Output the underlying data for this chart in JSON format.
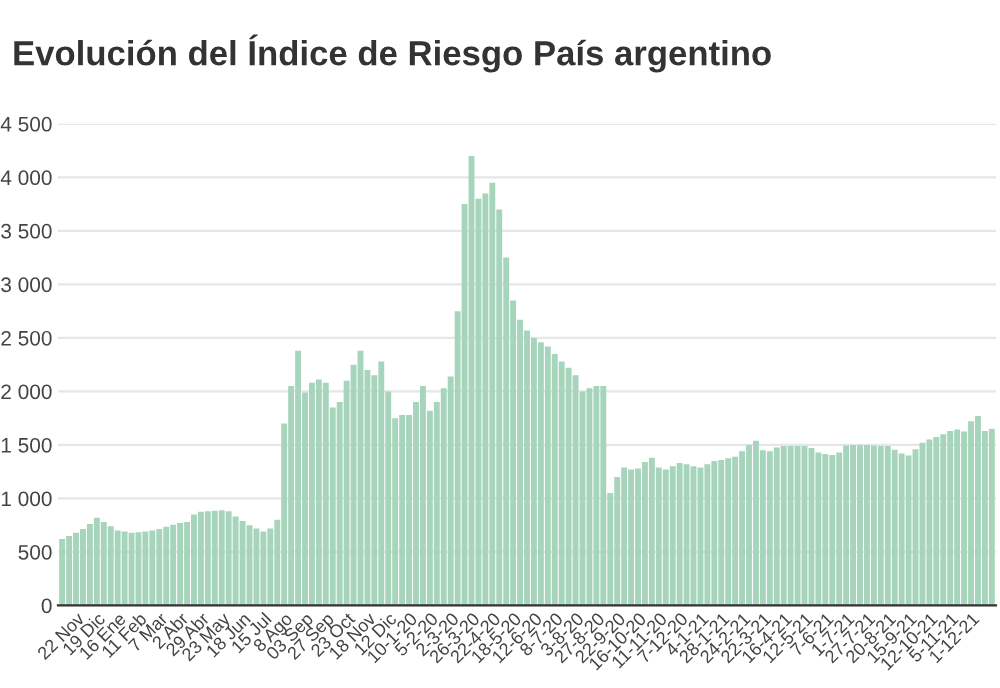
{
  "chart_data": {
    "type": "bar",
    "title": "Evolución del Índice de Riesgo País argentino",
    "categories": [
      null,
      null,
      "22 Nov",
      null,
      null,
      "19 Dic",
      null,
      null,
      "16 Ene",
      null,
      null,
      "11 Feb",
      null,
      null,
      "7 Mar",
      null,
      null,
      "2 Abr",
      null,
      null,
      "29 Abr",
      null,
      null,
      "23 May",
      null,
      null,
      "18 Jun",
      null,
      null,
      "15 Jul",
      null,
      null,
      "8 Ago",
      null,
      null,
      "03 Sep",
      null,
      null,
      "27 Sep",
      null,
      null,
      "23 Oct",
      null,
      null,
      "18 Nov",
      null,
      null,
      "12 Dic",
      null,
      null,
      "10-1-20",
      null,
      null,
      "5-2-20",
      null,
      null,
      "2-3-20",
      null,
      null,
      "26-3-20",
      null,
      null,
      "22-4-20",
      null,
      null,
      "18-5-20",
      null,
      null,
      "12-6-20",
      null,
      null,
      "8-7-20",
      null,
      null,
      "3-8-20",
      null,
      null,
      "27-8-20",
      null,
      null,
      "22-9-20",
      null,
      null,
      "16-10-20",
      null,
      null,
      "11-11-20",
      null,
      null,
      "7-12-20",
      null,
      null,
      "4-1-21",
      null,
      null,
      "28-1-21",
      null,
      null,
      "24-2-21",
      null,
      null,
      "22-3-21",
      null,
      null,
      "16-4-21",
      null,
      null,
      "12-5-21",
      null,
      null,
      "7-6-21",
      null,
      null,
      "1-7-21",
      null,
      null,
      "27-7-21",
      null,
      null,
      "20-8-21",
      null,
      null,
      "15-9-21",
      null,
      null,
      "12-10-21",
      null,
      null,
      "5-11-21",
      null,
      null,
      "1-12-21",
      null,
      null,
      null
    ],
    "values": [
      620,
      650,
      680,
      715,
      760,
      820,
      780,
      740,
      700,
      690,
      680,
      685,
      690,
      700,
      715,
      735,
      755,
      770,
      780,
      850,
      875,
      880,
      885,
      890,
      880,
      830,
      790,
      750,
      720,
      690,
      720,
      800,
      1700,
      2050,
      2380,
      1990,
      2080,
      2110,
      2080,
      1850,
      1900,
      2100,
      2250,
      2380,
      2200,
      2150,
      2280,
      2000,
      1750,
      1780,
      1780,
      1900,
      2050,
      1820,
      1900,
      2030,
      2140,
      2750,
      3750,
      4200,
      3800,
      3850,
      3950,
      3700,
      3250,
      2850,
      2670,
      2570,
      2500,
      2460,
      2420,
      2350,
      2280,
      2220,
      2150,
      2000,
      2030,
      2050,
      2050,
      1050,
      1200,
      1290,
      1270,
      1280,
      1340,
      1380,
      1290,
      1270,
      1300,
      1330,
      1320,
      1300,
      1290,
      1320,
      1350,
      1360,
      1375,
      1390,
      1440,
      1500,
      1540,
      1450,
      1440,
      1475,
      1490,
      1490,
      1490,
      1490,
      1470,
      1430,
      1415,
      1405,
      1430,
      1495,
      1500,
      1500,
      1500,
      1495,
      1490,
      1490,
      1455,
      1420,
      1400,
      1460,
      1520,
      1550,
      1575,
      1600,
      1630,
      1645,
      1625,
      1720,
      1770,
      1630,
      1650
    ],
    "color": "#a6d5bb",
    "ylim": [
      0,
      4500
    ],
    "yticks": [
      0,
      500,
      {
        "value": 1000,
        "label": "1 000"
      },
      {
        "value": 1500,
        "label": "1 500"
      },
      {
        "value": 2000,
        "label": "2 000"
      },
      {
        "value": 2500,
        "label": "2 500"
      },
      {
        "value": 3000,
        "label": "3 000"
      },
      {
        "value": 3500,
        "label": "3 500"
      },
      {
        "value": 4000,
        "label": "4 000"
      },
      {
        "value": 4500,
        "label": "4 500"
      }
    ],
    "grid": "y"
  }
}
